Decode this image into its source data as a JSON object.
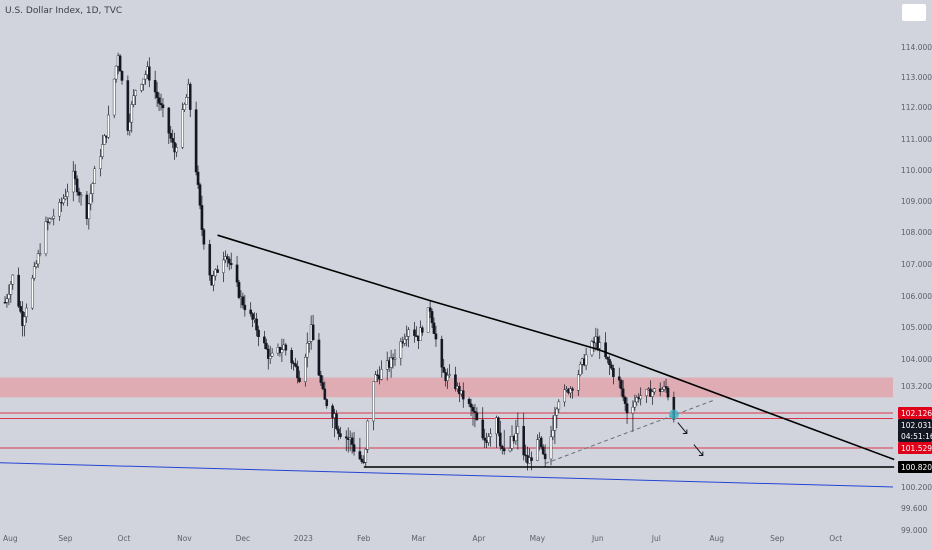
{
  "title": "U.S. Dollar Index, 1D, TVC",
  "colors": {
    "background": "#d1d4dc",
    "up_candle": "#ffffff",
    "down_candle": "#131722",
    "wick": "#131722",
    "resistance_zone": "#e3a5ad",
    "red_level": "#e1001a",
    "trendline": "#000000",
    "support_line": "#2445d6",
    "dashed_line": "#6b6f7a",
    "marker": "#3ab5c8",
    "axis_text": "#5d606b"
  },
  "chart_data": {
    "type": "candlestick",
    "title": "U.S. Dollar Index, 1D, TVC",
    "x_tick_labels": [
      "Aug",
      "Sep",
      "Oct",
      "Nov",
      "Dec",
      "2023",
      "Feb",
      "Mar",
      "Apr",
      "May",
      "Jun",
      "Jul",
      "Aug",
      "Sep",
      "Oct"
    ],
    "y_tick_labels": [
      "114.000",
      "113.000",
      "112.000",
      "111.000",
      "110.000",
      "109.000",
      "108.000",
      "107.000",
      "106.000",
      "105.000",
      "104.000",
      "103.200",
      "101.529",
      "100.820",
      "100.200",
      "99.600",
      "99.000"
    ],
    "ylim": [
      98.95,
      114.95
    ],
    "grid": false,
    "price_path": [
      [
        "2022-08-01",
        105.8
      ],
      [
        "2022-08-05",
        106.6
      ],
      [
        "2022-08-10",
        105.2
      ],
      [
        "2022-08-15",
        106.5
      ],
      [
        "2022-08-22",
        108.2
      ],
      [
        "2022-08-29",
        108.8
      ],
      [
        "2022-09-05",
        109.8
      ],
      [
        "2022-09-12",
        108.6
      ],
      [
        "2022-09-16",
        109.9
      ],
      [
        "2022-09-22",
        111.2
      ],
      [
        "2022-09-28",
        113.8
      ],
      [
        "2022-10-03",
        111.4
      ],
      [
        "2022-10-07",
        112.6
      ],
      [
        "2022-10-13",
        113.2
      ],
      [
        "2022-10-21",
        111.8
      ],
      [
        "2022-10-27",
        110.6
      ],
      [
        "2022-11-03",
        112.6
      ],
      [
        "2022-11-10",
        108.1
      ],
      [
        "2022-11-15",
        106.4
      ],
      [
        "2022-11-22",
        107.4
      ],
      [
        "2022-11-30",
        105.9
      ],
      [
        "2022-12-07",
        105.1
      ],
      [
        "2022-12-15",
        104.0
      ],
      [
        "2022-12-22",
        104.4
      ],
      [
        "2022-12-30",
        103.5
      ],
      [
        "2023-01-05",
        104.9
      ],
      [
        "2023-01-12",
        102.6
      ],
      [
        "2023-01-19",
        101.9
      ],
      [
        "2023-01-26",
        101.6
      ],
      [
        "2023-02-01",
        100.9
      ],
      [
        "2023-02-06",
        103.4
      ],
      [
        "2023-02-15",
        103.9
      ],
      [
        "2023-02-24",
        105.0
      ],
      [
        "2023-03-01",
        104.7
      ],
      [
        "2023-03-07",
        105.6
      ],
      [
        "2023-03-13",
        103.6
      ],
      [
        "2023-03-20",
        103.2
      ],
      [
        "2023-03-27",
        102.4
      ],
      [
        "2023-04-03",
        101.6
      ],
      [
        "2023-04-10",
        102.1
      ],
      [
        "2023-04-14",
        101.3
      ],
      [
        "2023-04-21",
        101.8
      ],
      [
        "2023-04-26",
        101.0
      ],
      [
        "2023-05-02",
        101.6
      ],
      [
        "2023-05-05",
        101.0
      ],
      [
        "2023-05-12",
        102.7
      ],
      [
        "2023-05-19",
        103.2
      ],
      [
        "2023-05-26",
        104.1
      ],
      [
        "2023-05-31",
        104.6
      ],
      [
        "2023-06-05",
        104.0
      ],
      [
        "2023-06-12",
        103.3
      ],
      [
        "2023-06-16",
        102.2
      ],
      [
        "2023-06-22",
        102.8
      ],
      [
        "2023-06-30",
        103.0
      ],
      [
        "2023-07-06",
        103.1
      ],
      [
        "2023-07-10",
        102.1
      ]
    ],
    "annotations": {
      "resistance_zone": [
        102.75,
        103.45
      ],
      "red_levels": [
        102.126,
        101.529
      ],
      "upper_red_line": 102.03,
      "descending_trendline": [
        [
          "2022-11-18",
          107.9
        ],
        [
          "2023-03-07",
          105.85
        ],
        [
          "2023-06-01",
          104.3
        ],
        [
          "2023-07-10",
          103.45
        ],
        [
          "2023-10-31",
          101.1
        ]
      ],
      "flat_support": [
        [
          "2023-02-01",
          100.82
        ],
        [
          "2023-10-31",
          100.82
        ]
      ],
      "rising_dashed_line": [
        [
          "2023-05-05",
          100.95
        ],
        [
          "2023-07-31",
          102.65
        ]
      ],
      "blue_support": [
        [
          "2022-07-25",
          100.98
        ],
        [
          "2023-10-31",
          100.2
        ]
      ],
      "marker": [
        "2023-07-10",
        102.1
      ]
    }
  },
  "price_labels": [
    {
      "text": "102.126",
      "kind": "red"
    },
    {
      "text": "102.031",
      "kind": "dark"
    },
    {
      "text": "04:51:16",
      "kind": "dark"
    },
    {
      "text": "101.529",
      "kind": "red"
    },
    {
      "text": "100.820",
      "kind": "black"
    }
  ]
}
